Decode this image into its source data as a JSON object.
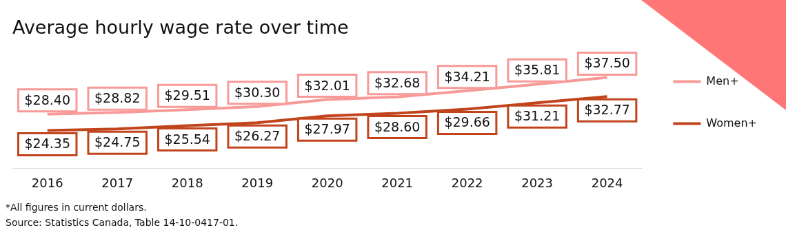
{
  "chart_data": {
    "type": "line",
    "title": "Average hourly wage rate over time",
    "categories": [
      "2016",
      "2017",
      "2018",
      "2019",
      "2020",
      "2021",
      "2022",
      "2023",
      "2024"
    ],
    "series": [
      {
        "name": "Men+",
        "color": "#f79a98",
        "values": [
          28.4,
          28.82,
          29.51,
          30.3,
          32.01,
          32.68,
          34.21,
          35.81,
          37.5
        ],
        "value_labels": [
          "$28.40",
          "$28.82",
          "$29.51",
          "$30.30",
          "$32.01",
          "$32.68",
          "$34.21",
          "$35.81",
          "$37.50"
        ]
      },
      {
        "name": "Women+",
        "color": "#c1441c",
        "values": [
          24.35,
          24.75,
          25.54,
          26.27,
          27.97,
          28.6,
          29.66,
          31.21,
          32.77
        ],
        "value_labels": [
          "$24.35",
          "$24.75",
          "$25.54",
          "$26.27",
          "$27.97",
          "$28.60",
          "$29.66",
          "$31.21",
          "$32.77"
        ]
      }
    ],
    "legend": "right",
    "grid": false,
    "line_style": "solid",
    "tick_labels": "x",
    "annotations": [
      "*All figures in current dollars.",
      "Source: Statistics Canada, Table 14-10-0417-01."
    ]
  }
}
